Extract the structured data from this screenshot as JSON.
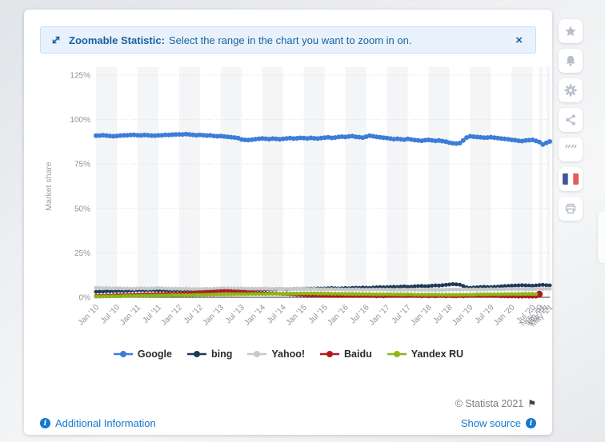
{
  "banner": {
    "bold": "Zoomable Statistic:",
    "text": "Select the range in the chart you want to zoom in on.",
    "close": "×"
  },
  "toolbar": {
    "buttons": [
      {
        "name": "favorite",
        "icon": "star-icon"
      },
      {
        "name": "notifications",
        "icon": "bell-icon"
      },
      {
        "name": "settings",
        "icon": "gear-icon"
      },
      {
        "name": "share",
        "icon": "share-icon"
      },
      {
        "name": "cite",
        "icon": "quote-icon"
      },
      {
        "name": "language",
        "icon": "french-flag-icon"
      },
      {
        "name": "print",
        "icon": "printer-icon"
      }
    ]
  },
  "footer": {
    "copyright": "© Statista 2021",
    "flag": "⚑",
    "additional_information": "Additional Information",
    "show_source": "Show source"
  },
  "chart_data": {
    "type": "line",
    "title": "",
    "xlabel": "",
    "ylabel": "Market share",
    "ylim": [
      0,
      125
    ],
    "yticks": [
      "0%",
      "25%",
      "50%",
      "75%",
      "100%",
      "125%"
    ],
    "grid": "dotted horizontal gridlines, alternating vertical bands",
    "legend_position": "bottom",
    "n_points": 132,
    "x_tick_labels": [
      "Jan '10",
      "Jul '10",
      "Jan '11",
      "Jul '11",
      "Jan '12",
      "Jul '12",
      "Jan '13",
      "Jul '13",
      "Jan '14",
      "Jul '14",
      "Jan '15",
      "Jul '15",
      "Jan '16",
      "Jul '16",
      "Jan '17",
      "Jul '17",
      "Jan '18",
      "Jul '18",
      "Jan '19",
      "Jul '19",
      "Jan '20",
      "Jul '20",
      "Nov '20",
      "Jan '21",
      "Mar '21",
      "May '21"
    ],
    "x_tick_indices": [
      0,
      6,
      12,
      18,
      24,
      30,
      36,
      42,
      48,
      54,
      60,
      66,
      72,
      78,
      84,
      90,
      96,
      102,
      108,
      114,
      120,
      126,
      128,
      129,
      130,
      131
    ],
    "series": [
      {
        "name": "Google",
        "color": "#3b7dd8",
        "marker_r": 3,
        "values": [
          90.9,
          91.0,
          91.2,
          91.0,
          90.8,
          90.6,
          90.8,
          91.0,
          91.1,
          91.2,
          91.3,
          91.4,
          91.2,
          91.1,
          91.3,
          91.2,
          91.0,
          90.9,
          91.1,
          91.2,
          91.4,
          91.3,
          91.5,
          91.6,
          91.7,
          91.6,
          91.8,
          91.6,
          91.4,
          91.2,
          91.4,
          91.2,
          91.0,
          91.1,
          90.8,
          90.6,
          90.7,
          90.5,
          90.3,
          90.1,
          89.9,
          89.6,
          88.8,
          88.6,
          88.5,
          88.7,
          89.0,
          89.2,
          89.4,
          89.2,
          89.0,
          89.3,
          89.1,
          88.9,
          89.1,
          89.4,
          89.6,
          89.3,
          89.5,
          89.7,
          89.6,
          89.4,
          89.7,
          89.5,
          89.3,
          89.6,
          89.8,
          90.0,
          89.7,
          89.9,
          90.2,
          90.4,
          90.2,
          90.5,
          90.7,
          90.3,
          90.1,
          89.9,
          90.4,
          90.9,
          90.6,
          90.3,
          90.0,
          89.8,
          89.6,
          89.3,
          89.0,
          89.2,
          88.9,
          88.7,
          89.1,
          88.8,
          88.5,
          88.3,
          88.1,
          88.4,
          88.6,
          88.3,
          88.0,
          88.2,
          87.9,
          87.6,
          87.0,
          86.7,
          86.5,
          86.8,
          88.2,
          89.9,
          90.6,
          90.4,
          90.2,
          90.0,
          89.8,
          89.9,
          90.1,
          89.8,
          89.6,
          89.3,
          89.1,
          88.9,
          88.6,
          88.4,
          88.1,
          87.9,
          88.2,
          88.4,
          88.6,
          88.0,
          87.3,
          86.0,
          86.9,
          87.7
        ]
      },
      {
        "name": "bing",
        "color": "#1d3a56",
        "marker_r": 2.5,
        "values": [
          3.1,
          3.2,
          3.3,
          3.4,
          3.4,
          3.5,
          3.6,
          3.7,
          3.6,
          3.7,
          3.8,
          3.9,
          4.0,
          4.1,
          4.0,
          4.1,
          4.2,
          4.1,
          4.0,
          4.1,
          4.0,
          3.9,
          4.0,
          4.1,
          4.0,
          4.1,
          4.0,
          4.1,
          4.2,
          4.3,
          4.2,
          4.3,
          4.4,
          4.3,
          4.4,
          4.5,
          4.4,
          4.5,
          4.4,
          4.3,
          4.4,
          4.5,
          4.6,
          4.5,
          4.6,
          4.5,
          4.4,
          4.5,
          4.4,
          4.5,
          4.6,
          4.5,
          4.6,
          4.7,
          4.6,
          4.5,
          4.6,
          4.7,
          4.8,
          4.7,
          4.8,
          4.9,
          4.8,
          4.9,
          5.0,
          4.9,
          5.0,
          5.1,
          5.2,
          5.1,
          5.0,
          5.1,
          5.2,
          5.1,
          5.3,
          5.4,
          5.3,
          5.5,
          5.4,
          5.3,
          5.5,
          5.6,
          5.7,
          5.6,
          5.7,
          5.8,
          5.9,
          5.8,
          6.0,
          6.1,
          5.9,
          6.0,
          6.2,
          6.3,
          6.4,
          6.2,
          6.3,
          6.5,
          6.7,
          6.6,
          6.8,
          7.0,
          7.2,
          7.4,
          7.3,
          7.1,
          6.4,
          5.6,
          5.3,
          5.5,
          5.6,
          5.8,
          5.9,
          5.8,
          5.7,
          5.9,
          6.0,
          6.2,
          6.3,
          6.4,
          6.5,
          6.6,
          6.7,
          6.8,
          6.7,
          6.6,
          6.5,
          6.7,
          6.9,
          7.0,
          6.8,
          6.7
        ]
      },
      {
        "name": "Yahoo!",
        "color": "#c6c9cc",
        "marker_r": 2.5,
        "values": [
          5.3,
          5.2,
          5.1,
          5.2,
          5.1,
          5.0,
          5.1,
          5.0,
          4.9,
          5.0,
          4.9,
          4.8,
          5.0,
          5.1,
          5.0,
          4.9,
          5.0,
          5.1,
          5.2,
          5.1,
          5.0,
          4.9,
          4.8,
          4.9,
          4.8,
          4.7,
          4.8,
          4.7,
          4.6,
          4.7,
          4.6,
          4.7,
          4.8,
          4.7,
          4.8,
          4.9,
          5.0,
          5.1,
          5.0,
          4.9,
          5.0,
          4.9,
          5.0,
          4.9,
          4.8,
          4.9,
          4.8,
          4.9,
          4.8,
          4.9,
          4.8,
          4.7,
          4.8,
          4.7,
          4.6,
          4.7,
          4.6,
          4.7,
          4.8,
          4.7,
          4.8,
          4.7,
          4.6,
          4.7,
          4.6,
          4.5,
          4.6,
          4.5,
          4.6,
          4.5,
          4.6,
          4.5,
          4.4,
          4.5,
          4.4,
          4.5,
          4.4,
          4.3,
          4.4,
          4.3,
          4.4,
          4.3,
          4.4,
          4.3,
          4.4,
          4.3,
          4.2,
          4.3,
          4.2,
          4.3,
          4.2,
          4.3,
          4.2,
          4.3,
          4.2,
          4.3,
          4.2,
          4.3,
          4.2,
          4.3,
          4.2,
          4.3,
          4.4,
          4.3,
          4.4,
          4.3,
          4.4,
          4.5,
          4.4,
          4.5,
          4.4,
          4.5,
          4.4,
          4.5,
          4.6,
          4.5,
          4.6,
          4.5,
          4.6,
          4.7,
          4.6,
          4.7,
          4.6,
          4.7,
          4.6,
          4.7,
          4.6,
          4.7,
          4.8,
          4.7,
          4.8,
          4.9
        ]
      },
      {
        "name": "Baidu",
        "color": "#ae1a1e",
        "marker_r": 2.5,
        "big_last_marker": true,
        "values": [
          0.7,
          0.8,
          0.9,
          1.0,
          1.0,
          1.1,
          1.2,
          1.2,
          1.3,
          1.3,
          1.4,
          1.5,
          1.5,
          1.6,
          1.6,
          1.7,
          1.7,
          1.8,
          1.8,
          1.9,
          1.9,
          2.0,
          2.0,
          2.1,
          2.2,
          2.3,
          2.4,
          2.5,
          2.6,
          2.7,
          2.8,
          2.9,
          3.0,
          3.1,
          3.2,
          3.3,
          3.4,
          3.5,
          3.5,
          3.4,
          3.3,
          3.2,
          3.1,
          3.0,
          2.9,
          2.8,
          2.7,
          2.6,
          2.5,
          2.4,
          2.3,
          2.2,
          2.1,
          2.0,
          1.9,
          1.8,
          1.7,
          1.6,
          1.5,
          1.4,
          1.3,
          1.2,
          1.1,
          1.0,
          1.0,
          0.9,
          0.9,
          0.8,
          0.8,
          0.8,
          0.7,
          0.7,
          0.8,
          0.7,
          0.7,
          0.8,
          0.7,
          0.7,
          0.8,
          0.7,
          0.7,
          0.6,
          0.7,
          0.6,
          0.7,
          0.7,
          0.8,
          0.7,
          0.8,
          0.7,
          0.7,
          0.8,
          0.7,
          0.7,
          0.6,
          0.7,
          0.6,
          0.7,
          0.6,
          0.7,
          0.7,
          0.6,
          0.7,
          0.6,
          0.6,
          0.7,
          0.6,
          0.7,
          0.8,
          0.7,
          0.8,
          0.7,
          0.8,
          0.7,
          0.8,
          0.7,
          0.7,
          0.6,
          0.6,
          0.5,
          0.5,
          0.5,
          0.4,
          0.4,
          0.5,
          0.4,
          0.4,
          0.4,
          1.8,
          null,
          null,
          null
        ]
      },
      {
        "name": "Yandex RU",
        "color": "#8fb517",
        "marker_r": 2.5,
        "values": [
          0.4,
          0.4,
          0.5,
          0.5,
          0.5,
          0.6,
          0.6,
          0.6,
          0.7,
          0.7,
          0.8,
          0.8,
          0.8,
          0.9,
          0.9,
          0.9,
          1.0,
          1.0,
          1.0,
          1.1,
          1.1,
          1.1,
          1.2,
          1.2,
          1.2,
          1.2,
          1.3,
          1.3,
          1.3,
          1.4,
          1.4,
          1.4,
          1.5,
          1.5,
          1.5,
          1.6,
          1.6,
          1.6,
          1.7,
          1.7,
          1.7,
          1.8,
          1.8,
          1.8,
          1.8,
          1.9,
          1.9,
          1.9,
          1.9,
          1.9,
          2.0,
          2.0,
          2.0,
          2.0,
          2.1,
          2.1,
          2.1,
          2.1,
          2.1,
          2.2,
          2.2,
          2.2,
          2.2,
          2.2,
          2.1,
          2.1,
          2.1,
          2.1,
          2.0,
          2.0,
          2.0,
          2.0,
          1.9,
          1.9,
          1.9,
          1.9,
          1.8,
          1.8,
          1.8,
          1.8,
          1.7,
          1.7,
          1.7,
          1.7,
          1.7,
          1.7,
          1.6,
          1.6,
          1.6,
          1.6,
          1.6,
          1.6,
          1.5,
          1.5,
          1.5,
          1.5,
          1.5,
          1.5,
          1.5,
          1.4,
          1.4,
          1.4,
          1.4,
          1.4,
          1.4,
          1.5,
          1.5,
          1.5,
          1.5,
          1.5,
          1.6,
          1.6,
          1.6,
          1.6,
          1.7,
          1.7,
          1.7,
          1.7,
          1.8,
          1.8,
          1.8,
          1.8,
          1.8,
          1.9,
          1.9,
          1.9,
          1.9,
          1.8,
          null,
          null,
          null,
          null
        ]
      }
    ]
  }
}
